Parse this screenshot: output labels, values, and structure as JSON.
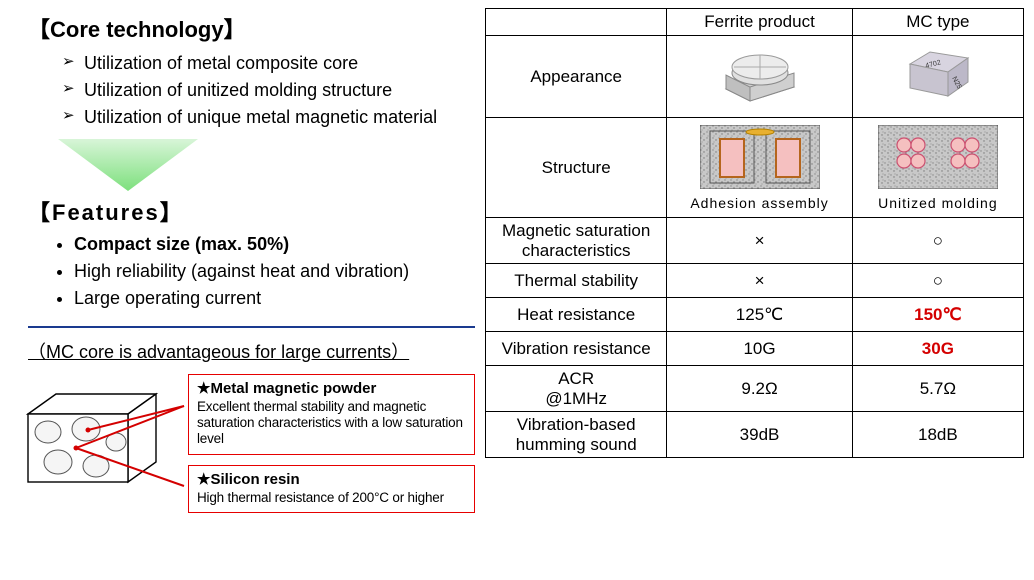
{
  "left": {
    "coretech_title": "【Core technology】",
    "coretech_items": [
      "Utilization of metal composite core",
      "Utilization of unitized molding structure",
      "Utilization of unique metal magnetic material"
    ],
    "features_title": "【Features】",
    "features_items": [
      "Compact size (max. 50%)",
      "High reliability (against heat and vibration)",
      "Large operating current"
    ],
    "subnote": "（MC core is advantageous for large currents）",
    "callout1_title": "★Metal magnetic powder",
    "callout1_desc": "Excellent thermal stability and magnetic saturation characteristics with a low saturation level",
    "callout2_title": "★Silicon resin",
    "callout2_desc": "High thermal resistance of 200°C or higher"
  },
  "table": {
    "head_blank": "",
    "head_ferrite": "Ferrite product",
    "head_mc": "MC type",
    "row_appearance": "Appearance",
    "row_structure": "Structure",
    "caption_ferrite_struct": "Adhesion assembly",
    "caption_mc_struct": "Unitized molding",
    "row_magsat": "Magnetic saturation characteristics",
    "row_thermal": "Thermal stability",
    "row_heat": "Heat resistance",
    "row_vib": "Vibration resistance",
    "row_acr": "ACR @1MHz",
    "row_hum": "Vibration-based humming sound",
    "x_mark": "×",
    "o_mark": "○",
    "heat_ferrite": "125℃",
    "heat_mc": "150℃",
    "vib_ferrite": "10G",
    "vib_mc": "30G",
    "acr_ferrite": "9.2Ω",
    "acr_mc": "5.7Ω",
    "hum_ferrite": "39dB",
    "hum_mc": "18dB"
  },
  "colors": {
    "accent_red": "#d40000",
    "hr_blue": "#1a3a8f",
    "arrow_grad_top": "#d8f5d8",
    "arrow_grad_bot": "#7de07d",
    "speckle_bg": "#bfbfbf",
    "coil_pink": "#f5c0c0",
    "coil_brown": "#b5651d"
  }
}
